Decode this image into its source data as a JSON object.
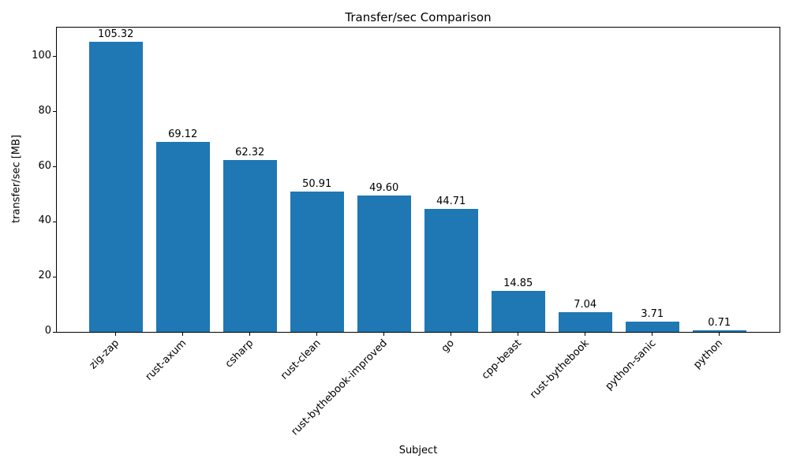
{
  "figure": {
    "background": "#ffffff",
    "axis_color": "#000000",
    "text_color": "#000000"
  },
  "chart_data": {
    "type": "bar",
    "title": "Transfer/sec Comparison",
    "xlabel": "Subject",
    "ylabel": "transfer/sec [MB]",
    "categories": [
      "zig-zap",
      "rust-axum",
      "csharp",
      "rust-clean",
      "rust-bythebook-improved",
      "go",
      "cpp-beast",
      "rust-bythebook",
      "python-sanic",
      "python"
    ],
    "values": [
      105.32,
      69.12,
      62.32,
      50.91,
      49.6,
      44.71,
      14.85,
      7.04,
      3.71,
      0.71
    ],
    "value_labels": [
      "105.32",
      "69.12",
      "62.32",
      "50.91",
      "49.60",
      "44.71",
      "14.85",
      "7.04",
      "3.71",
      "0.71"
    ],
    "yticks": [
      0,
      20,
      40,
      60,
      80,
      100
    ],
    "ylim": [
      0,
      110.6
    ],
    "grid": false,
    "legend": null,
    "bar_color": "#1f77b4",
    "x_tick_rotation_deg": 45
  }
}
